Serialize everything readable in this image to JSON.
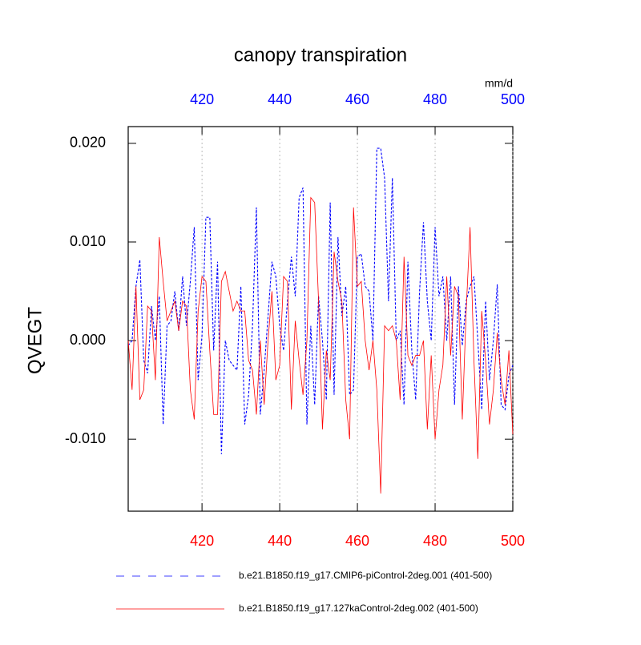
{
  "chart_data": {
    "type": "line",
    "title": "canopy transpiration",
    "y_label": "QVEGT",
    "unit_label": "mm/d",
    "x": [
      401,
      402,
      403,
      404,
      405,
      406,
      407,
      408,
      409,
      410,
      411,
      412,
      413,
      414,
      415,
      416,
      417,
      418,
      419,
      420,
      421,
      422,
      423,
      424,
      425,
      426,
      427,
      428,
      429,
      430,
      431,
      432,
      433,
      434,
      435,
      436,
      437,
      438,
      439,
      440,
      441,
      442,
      443,
      444,
      445,
      446,
      447,
      448,
      449,
      450,
      451,
      452,
      453,
      454,
      455,
      456,
      457,
      458,
      459,
      460,
      461,
      462,
      463,
      464,
      465,
      466,
      467,
      468,
      469,
      470,
      471,
      472,
      473,
      474,
      475,
      476,
      477,
      478,
      479,
      480,
      481,
      482,
      483,
      484,
      485,
      486,
      487,
      488,
      489,
      490,
      491,
      492,
      493,
      494,
      495,
      496,
      497,
      498,
      499,
      500
    ],
    "series": [
      {
        "name": "b.e21.B1850.f19_g17.CMIP6-piControl-2deg.001 (401-500)",
        "color": "#0000ff",
        "dash": "dashed",
        "values": [
          -0.0005,
          0.0,
          0.0055,
          0.0082,
          -0.002,
          -0.0033,
          0.0035,
          0.0,
          0.0045,
          -0.0085,
          0.0015,
          0.002,
          0.005,
          0.001,
          0.0065,
          0.0015,
          0.006,
          0.0115,
          -0.004,
          0.0005,
          0.0125,
          0.0125,
          -0.001,
          0.008,
          -0.0115,
          0.0,
          -0.002,
          -0.0025,
          -0.003,
          0.0055,
          -0.0085,
          -0.0055,
          0.0015,
          0.0135,
          -0.0075,
          -0.003,
          0.0025,
          0.008,
          0.0065,
          0.0015,
          -0.001,
          0.004,
          0.0085,
          0.0045,
          0.0145,
          0.0155,
          -0.0085,
          0.0015,
          -0.0065,
          0.0045,
          0.0,
          -0.006,
          0.014,
          -0.0055,
          0.0105,
          0.0025,
          0.0055,
          -0.0055,
          -0.005,
          0.0085,
          0.0088,
          0.0055,
          0.005,
          0.0,
          0.0195,
          0.0195,
          0.0165,
          0.004,
          0.0165,
          0.0,
          0.001,
          -0.0065,
          0.008,
          -0.001,
          -0.006,
          0.005,
          0.012,
          0.004,
          0.0,
          0.0115,
          0.0045,
          0.0065,
          0.0,
          0.0065,
          -0.0065,
          0.0055,
          -0.0005,
          0.004,
          0.0055,
          0.0065,
          0.0,
          -0.007,
          0.004,
          -0.004,
          0.0,
          0.0057,
          -0.0065,
          -0.007,
          -0.0035,
          -0.0025
        ]
      },
      {
        "name": "b.e21.B1850.f19_g17.127kaControl-2deg.002 (401-500)",
        "color": "#ff0000",
        "dash": "solid",
        "values": [
          0.0,
          -0.005,
          0.0055,
          -0.006,
          -0.005,
          0.0035,
          0.003,
          -0.004,
          0.0105,
          0.006,
          0.002,
          0.003,
          0.004,
          0.001,
          0.004,
          0.0035,
          -0.005,
          -0.008,
          0.003,
          0.0065,
          0.006,
          -0.001,
          -0.0075,
          -0.0075,
          0.006,
          0.007,
          0.005,
          0.003,
          0.004,
          0.003,
          0.003,
          -0.002,
          -0.003,
          -0.0075,
          0.0,
          -0.0065,
          0.0,
          0.005,
          -0.004,
          -0.0025,
          0.0065,
          0.006,
          -0.007,
          0.002,
          -0.002,
          -0.0055,
          0.0,
          0.0145,
          0.014,
          0.004,
          -0.009,
          -0.001,
          -0.004,
          0.009,
          0.006,
          0.004,
          -0.006,
          -0.01,
          0.0135,
          0.0055,
          0.006,
          0.0,
          -0.003,
          0.0,
          -0.005,
          -0.0155,
          0.0015,
          0.001,
          0.0015,
          0.0,
          -0.006,
          0.0085,
          -0.0015,
          -0.0025,
          -0.0015,
          -0.0015,
          0.0,
          -0.009,
          -0.0015,
          -0.01,
          -0.005,
          -0.0025,
          0.0065,
          -0.0015,
          0.0055,
          0.0045,
          -0.008,
          0.003,
          0.0115,
          -0.002,
          -0.012,
          0.003,
          -0.002,
          -0.0085,
          -0.005,
          0.0008,
          -0.004,
          -0.0065,
          -0.001,
          -0.0095
        ]
      }
    ],
    "xlim": [
      401,
      500
    ],
    "xticks": [
      420,
      440,
      460,
      480,
      500
    ],
    "ylim": [
      -0.0173,
      0.0217
    ],
    "yticks": [
      {
        "value": -0.01,
        "label": "-0.010"
      },
      {
        "value": 0,
        "label": "0.000"
      },
      {
        "value": 0.01,
        "label": "0.010"
      },
      {
        "value": 0.02,
        "label": "0.020"
      }
    ],
    "grid": true
  }
}
